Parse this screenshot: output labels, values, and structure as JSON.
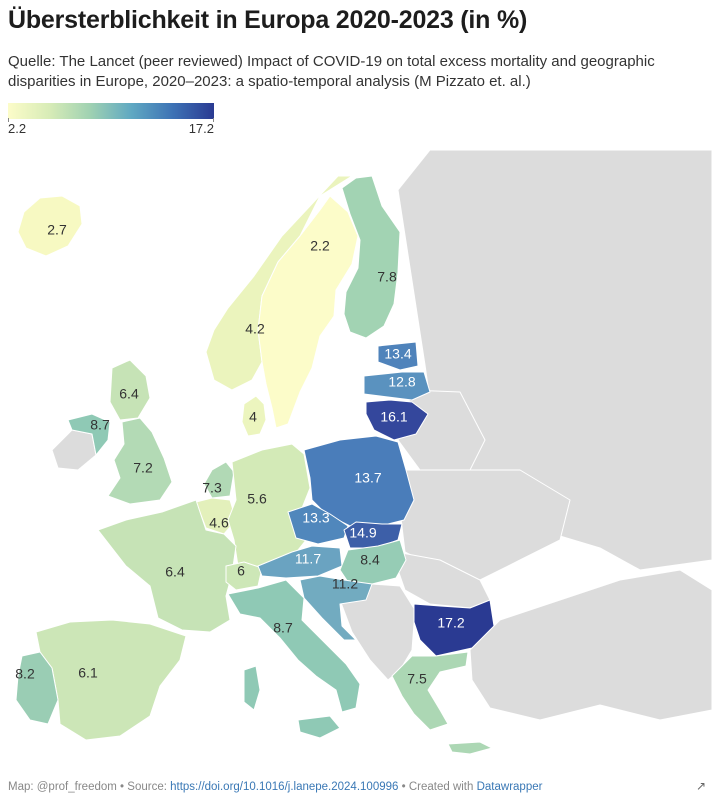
{
  "title": "Übersterblichkeit in Europa 2020-2023 (in %)",
  "subtitle": "Quelle: The Lancet (peer reviewed) Impact of COVID-19 on total excess mortality and geographic disparities in Europe, 2020–2023: a spatio-temporal analysis (M Pizzato et. al.)",
  "legend": {
    "min": "2.2",
    "max": "17.2",
    "color_low": "#fcfcc9",
    "color_high": "#2a3a92"
  },
  "colors": {
    "no_data": "#dcdcdc",
    "border": "#ffffff"
  },
  "countries": [
    {
      "code": "IS",
      "value": "2.7",
      "color": "#f7f9c2"
    },
    {
      "code": "SE",
      "value": "2.2",
      "color": "#fcfcc9"
    },
    {
      "code": "FI",
      "value": "7.8",
      "color": "#a2d3b3"
    },
    {
      "code": "NO",
      "value": "4.2",
      "color": "#ebf4bd"
    },
    {
      "code": "EE",
      "value": "13.4",
      "color": "#4f83bb"
    },
    {
      "code": "LV",
      "value": "12.8",
      "color": "#5a92bf"
    },
    {
      "code": "LT",
      "value": "16.1",
      "color": "#34479c"
    },
    {
      "code": "DK",
      "value": "4",
      "color": "#ecf5be"
    },
    {
      "code": "GB-SCT",
      "value": "6.4",
      "color": "#c6e3b6"
    },
    {
      "code": "IE",
      "value": "8.7",
      "color": "#8fc9b5"
    },
    {
      "code": "GB",
      "value": "7.2",
      "color": "#b3dab5"
    },
    {
      "code": "NL",
      "value": "7.3",
      "color": "#b1d9b5"
    },
    {
      "code": "BE",
      "value": "4.6",
      "color": "#e3f0bb"
    },
    {
      "code": "DE",
      "value": "5.6",
      "color": "#d3eab7"
    },
    {
      "code": "PL",
      "value": "13.7",
      "color": "#4a7dba"
    },
    {
      "code": "CZ",
      "value": "13.3",
      "color": "#5087bc"
    },
    {
      "code": "SK",
      "value": "14.9",
      "color": "#3d5fa8"
    },
    {
      "code": "FR",
      "value": "6.4",
      "color": "#c6e3b6"
    },
    {
      "code": "CH",
      "value": "6",
      "color": "#cde7b7"
    },
    {
      "code": "AT",
      "value": "11.7",
      "color": "#6aa3c1"
    },
    {
      "code": "HU",
      "value": "8.4",
      "color": "#96ccb5"
    },
    {
      "code": "SI-HR",
      "value": "11.2",
      "color": "#72abc0"
    },
    {
      "code": "IT",
      "value": "8.7",
      "color": "#8fc9b5"
    },
    {
      "code": "ES",
      "value": "6.1",
      "color": "#cce6b7"
    },
    {
      "code": "PT",
      "value": "8.2",
      "color": "#9acdb4"
    },
    {
      "code": "BG",
      "value": "17.2",
      "color": "#2a3a92"
    },
    {
      "code": "GR",
      "value": "7.5",
      "color": "#acd7b4"
    }
  ],
  "footer": {
    "map_credit": "Map: @prof_freedom",
    "source_label": "Source:",
    "source_link": "https://doi.org/10.1016/j.lanepe.2024.100996",
    "created_with": "Created with",
    "tool": "Datawrapper",
    "separator": "•"
  },
  "expand_icon": "↗"
}
